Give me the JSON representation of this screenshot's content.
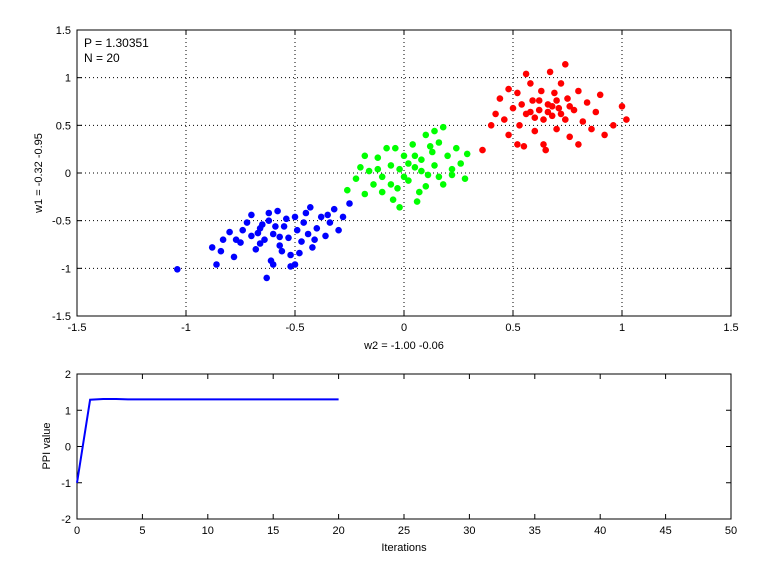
{
  "chart_data": [
    {
      "type": "scatter",
      "xlabel": "w2 = -1.00  -0.06",
      "ylabel": "w1 = -0.32  -0.95",
      "xlim": [
        -1.5,
        1.5
      ],
      "ylim": [
        -1.5,
        1.5
      ],
      "xticks": [
        -1.5,
        -1,
        -0.5,
        0,
        0.5,
        1,
        1.5
      ],
      "yticks": [
        -1.5,
        -1,
        -0.5,
        0,
        0.5,
        1,
        1.5
      ],
      "xtick_labels": [
        "-1.5",
        "-1",
        "-0.5",
        "0",
        "0.5",
        "1",
        "1.5"
      ],
      "ytick_labels": [
        "-1.5",
        "-1",
        "-0.5",
        "0",
        "0.5",
        "1",
        "1.5"
      ],
      "grid": true,
      "annotations": [
        "P = 1.30351",
        "N = 20"
      ],
      "series": [
        {
          "color": "#0000ff",
          "points": [
            [
              -1.04,
              -1.01
            ],
            [
              -0.86,
              -0.96
            ],
            [
              -0.84,
              -0.82
            ],
            [
              -0.78,
              -0.88
            ],
            [
              -0.8,
              -0.62
            ],
            [
              -0.75,
              -0.73
            ],
            [
              -0.72,
              -0.52
            ],
            [
              -0.7,
              -0.66
            ],
            [
              -0.68,
              -0.8
            ],
            [
              -0.66,
              -0.58
            ],
            [
              -0.64,
              -0.7
            ],
            [
              -0.62,
              -0.5
            ],
            [
              -0.61,
              -0.92
            ],
            [
              -0.6,
              -0.64
            ],
            [
              -0.58,
              -0.4
            ],
            [
              -0.57,
              -0.76
            ],
            [
              -0.55,
              -0.56
            ],
            [
              -0.53,
              -0.68
            ],
            [
              -0.52,
              -0.86
            ],
            [
              -0.5,
              -0.46
            ],
            [
              -0.49,
              -0.6
            ],
            [
              -0.47,
              -0.72
            ],
            [
              -0.46,
              -0.52
            ],
            [
              -0.44,
              -0.64
            ],
            [
              -0.43,
              -0.36
            ],
            [
              -0.42,
              -0.78
            ],
            [
              -0.4,
              -0.58
            ],
            [
              -0.38,
              -0.46
            ],
            [
              -0.36,
              -0.66
            ],
            [
              -0.34,
              -0.52
            ],
            [
              -0.32,
              -0.38
            ],
            [
              -0.3,
              -0.6
            ],
            [
              -0.28,
              -0.46
            ],
            [
              -0.25,
              -0.32
            ],
            [
              -0.74,
              -0.6
            ],
            [
              -0.66,
              -0.74
            ],
            [
              -0.56,
              -0.82
            ],
            [
              -0.48,
              -0.84
            ],
            [
              -0.63,
              -1.1
            ],
            [
              -0.52,
              -0.98
            ],
            [
              -0.7,
              -0.44
            ],
            [
              -0.62,
              -0.42
            ],
            [
              -0.54,
              -0.48
            ],
            [
              -0.59,
              -0.56
            ],
            [
              -0.45,
              -0.42
            ],
            [
              -0.67,
              -0.63
            ],
            [
              -0.57,
              -0.67
            ],
            [
              -0.65,
              -0.54
            ],
            [
              -0.41,
              -0.7
            ],
            [
              -0.77,
              -0.7
            ],
            [
              -0.83,
              -0.7
            ],
            [
              -0.88,
              -0.78
            ],
            [
              -0.6,
              -0.96
            ],
            [
              -0.5,
              -0.96
            ],
            [
              -0.35,
              -0.44
            ]
          ]
        },
        {
          "color": "#00ff00",
          "points": [
            [
              -0.26,
              -0.18
            ],
            [
              -0.22,
              -0.06
            ],
            [
              -0.2,
              0.06
            ],
            [
              -0.18,
              -0.22
            ],
            [
              -0.16,
              0.02
            ],
            [
              -0.14,
              -0.12
            ],
            [
              -0.12,
              0.16
            ],
            [
              -0.1,
              -0.04
            ],
            [
              -0.08,
              0.26
            ],
            [
              -0.06,
              0.08
            ],
            [
              -0.05,
              -0.28
            ],
            [
              -0.03,
              -0.16
            ],
            [
              -0.02,
              0.04
            ],
            [
              0.0,
              0.18
            ],
            [
              0.02,
              -0.08
            ],
            [
              0.04,
              0.3
            ],
            [
              0.05,
              0.06
            ],
            [
              0.07,
              -0.2
            ],
            [
              0.08,
              0.14
            ],
            [
              0.1,
              0.4
            ],
            [
              0.11,
              -0.02
            ],
            [
              0.13,
              0.22
            ],
            [
              0.14,
              0.08
            ],
            [
              0.16,
              0.32
            ],
            [
              0.18,
              -0.12
            ],
            [
              0.2,
              0.18
            ],
            [
              0.22,
              0.04
            ],
            [
              0.24,
              0.26
            ],
            [
              0.26,
              0.1
            ],
            [
              0.29,
              0.2
            ],
            [
              0.06,
              -0.3
            ],
            [
              -0.02,
              -0.36
            ],
            [
              -0.1,
              -0.2
            ],
            [
              -0.06,
              -0.12
            ],
            [
              0.02,
              0.1
            ],
            [
              0.12,
              0.28
            ],
            [
              0.16,
              -0.04
            ],
            [
              0.0,
              -0.04
            ],
            [
              -0.12,
              0.04
            ],
            [
              0.08,
              0.02
            ],
            [
              0.05,
              0.18
            ],
            [
              -0.04,
              0.26
            ],
            [
              0.18,
              0.48
            ],
            [
              0.14,
              0.44
            ],
            [
              0.22,
              -0.02
            ],
            [
              0.28,
              -0.06
            ],
            [
              -0.18,
              0.18
            ],
            [
              0.1,
              -0.14
            ]
          ]
        },
        {
          "color": "#ff0000",
          "points": [
            [
              0.36,
              0.24
            ],
            [
              0.4,
              0.5
            ],
            [
              0.42,
              0.62
            ],
            [
              0.44,
              0.78
            ],
            [
              0.46,
              0.56
            ],
            [
              0.48,
              0.4
            ],
            [
              0.5,
              0.68
            ],
            [
              0.52,
              0.84
            ],
            [
              0.53,
              0.5
            ],
            [
              0.55,
              0.28
            ],
            [
              0.56,
              0.62
            ],
            [
              0.58,
              0.94
            ],
            [
              0.59,
              0.76
            ],
            [
              0.6,
              0.44
            ],
            [
              0.62,
              0.66
            ],
            [
              0.63,
              0.86
            ],
            [
              0.64,
              0.56
            ],
            [
              0.65,
              0.24
            ],
            [
              0.66,
              0.72
            ],
            [
              0.67,
              1.06
            ],
            [
              0.68,
              0.6
            ],
            [
              0.69,
              0.84
            ],
            [
              0.7,
              0.46
            ],
            [
              0.71,
              0.68
            ],
            [
              0.72,
              0.94
            ],
            [
              0.74,
              0.56
            ],
            [
              0.75,
              0.78
            ],
            [
              0.76,
              0.38
            ],
            [
              0.78,
              0.66
            ],
            [
              0.8,
              0.86
            ],
            [
              0.82,
              0.54
            ],
            [
              0.84,
              0.74
            ],
            [
              0.86,
              0.46
            ],
            [
              0.88,
              0.64
            ],
            [
              0.9,
              0.82
            ],
            [
              0.92,
              0.4
            ],
            [
              0.96,
              0.5
            ],
            [
              1.0,
              0.7
            ],
            [
              1.02,
              0.56
            ],
            [
              0.62,
              0.76
            ],
            [
              0.58,
              0.64
            ],
            [
              0.66,
              0.64
            ],
            [
              0.7,
              0.76
            ],
            [
              0.54,
              0.72
            ],
            [
              0.6,
              0.58
            ],
            [
              0.72,
              0.62
            ],
            [
              0.48,
              0.88
            ],
            [
              0.74,
              1.14
            ],
            [
              0.56,
              1.04
            ],
            [
              0.8,
              0.3
            ],
            [
              0.64,
              0.3
            ],
            [
              0.52,
              0.3
            ],
            [
              0.68,
              0.7
            ],
            [
              0.76,
              0.7
            ]
          ]
        }
      ]
    },
    {
      "type": "line",
      "xlabel": "Iterations",
      "ylabel": "PPI value",
      "xlim": [
        0,
        50
      ],
      "ylim": [
        -2,
        2
      ],
      "xticks": [
        0,
        5,
        10,
        15,
        20,
        25,
        30,
        35,
        40,
        45,
        50
      ],
      "yticks": [
        -2,
        -1,
        0,
        1,
        2
      ],
      "xtick_labels": [
        "0",
        "5",
        "10",
        "15",
        "20",
        "25",
        "30",
        "35",
        "40",
        "45",
        "50"
      ],
      "ytick_labels": [
        "-2",
        "-1",
        "0",
        "1",
        "2"
      ],
      "grid": false,
      "series": [
        {
          "color": "#0000ff",
          "x": [
            0,
            1,
            2,
            3,
            4,
            5,
            6,
            7,
            8,
            9,
            10,
            11,
            12,
            13,
            14,
            15,
            16,
            17,
            18,
            19,
            20
          ],
          "values": [
            -1.0,
            1.29,
            1.31,
            1.31,
            1.3,
            1.3,
            1.3,
            1.3,
            1.3,
            1.3,
            1.3,
            1.3,
            1.3,
            1.3,
            1.3,
            1.3,
            1.3,
            1.3,
            1.3,
            1.3,
            1.3
          ]
        }
      ]
    }
  ]
}
